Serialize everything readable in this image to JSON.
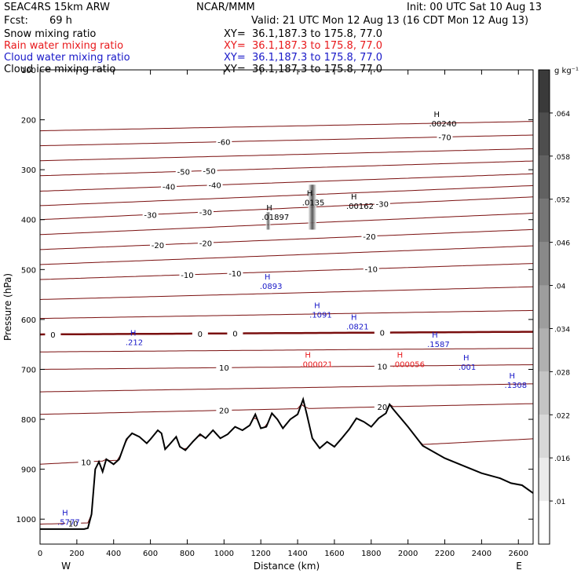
{
  "header": {
    "model": "SEAC4RS 15km ARW",
    "fcst_label": "Fcst:",
    "fcst_value": "69 h",
    "center": "NCAR/MMM",
    "init": "Init: 00 UTC Sat 10 Aug 13",
    "valid": "Valid: 21 UTC Mon 12 Aug 13 (16 CDT Mon 12 Aug 13)"
  },
  "fields": [
    {
      "name": "Snow mixing ratio",
      "color": "#000000",
      "xy": "XY=  36.1,187.3 to 175.8, 77.0"
    },
    {
      "name": "Rain water mixing ratio",
      "color": "#e8191c",
      "xy": "XY=  36.1,187.3 to 175.8, 77.0"
    },
    {
      "name": "Cloud water mixing ratio",
      "color": "#1818c8",
      "xy": "XY=  36.1,187.3 to 175.8, 77.0"
    },
    {
      "name": "Cloud ice mixing ratio",
      "color": "#000000",
      "xy": "XY=  36.1,187.3 to 175.8, 77.0"
    }
  ],
  "chart_data": {
    "type": "contour cross-section",
    "xlabel": "Distance (km)",
    "ylabel": "Pressure (hPa)",
    "xlim": [
      0,
      2680
    ],
    "ylim": [
      1050,
      100
    ],
    "x_ticks": [
      0,
      200,
      400,
      600,
      800,
      1000,
      1200,
      1400,
      1600,
      1800,
      2000,
      2200,
      2400,
      2600
    ],
    "y_ticks": [
      1000,
      900,
      800,
      700,
      600,
      500,
      400,
      300,
      200,
      100
    ],
    "x_end_labels": {
      "left": "W",
      "right": "E"
    },
    "colorbar": {
      "unit": "g kg⁻¹",
      "ticks": [
        ".01",
        ".016",
        ".022",
        ".028",
        ".034",
        ".04",
        ".046",
        ".052",
        ".058",
        ".064"
      ]
    },
    "temperature_contours": {
      "color": "#7a0f0f",
      "levels": [
        {
          "base": 1010,
          "slope": 0.0095,
          "labels": [
            {
              "text": "10",
              "x": 180
            }
          ]
        },
        {
          "base": 890,
          "slope": 0.019,
          "labels": [
            {
              "text": "10",
              "x": 250
            }
          ]
        },
        {
          "base": 790,
          "slope": 0.008,
          "labels": [
            {
              "text": "20",
              "x": 1000
            },
            {
              "text": "20",
              "x": 1860
            }
          ]
        },
        {
          "base": 745,
          "slope": 0.006
        },
        {
          "base": 700,
          "slope": 0.0035,
          "labels": [
            {
              "text": "10",
              "x": 1000
            },
            {
              "text": "10",
              "x": 1860
            }
          ]
        },
        {
          "base": 665,
          "slope": 0.0027
        },
        {
          "base": 630,
          "slope": 0.002,
          "bold": true,
          "labels": [
            {
              "text": "0",
              "x": 70
            },
            {
              "text": "0",
              "x": 870
            },
            {
              "text": "0",
              "x": 1060
            },
            {
              "text": "0",
              "x": 1860
            }
          ]
        },
        {
          "base": 598,
          "slope": 0.006
        },
        {
          "base": 560,
          "slope": 0.0095
        },
        {
          "base": 520,
          "slope": 0.012,
          "labels": [
            {
              "text": "-10",
              "x": 800
            },
            {
              "text": "-10",
              "x": 1060
            },
            {
              "text": "-10",
              "x": 1800
            }
          ]
        },
        {
          "base": 490,
          "slope": 0.014
        },
        {
          "base": 460,
          "slope": 0.015,
          "labels": [
            {
              "text": "-20",
              "x": 640
            },
            {
              "text": "-20",
              "x": 900
            },
            {
              "text": "-20",
              "x": 1790
            }
          ]
        },
        {
          "base": 430,
          "slope": 0.016
        },
        {
          "base": 400,
          "slope": 0.017,
          "labels": [
            {
              "text": "-30",
              "x": 600
            },
            {
              "text": "-30",
              "x": 900
            },
            {
              "text": "-30",
              "x": 1860
            }
          ]
        },
        {
          "base": 372,
          "slope": 0.015
        },
        {
          "base": 343,
          "slope": 0.013,
          "labels": [
            {
              "text": "-40",
              "x": 700
            },
            {
              "text": "-40",
              "x": 950
            }
          ]
        },
        {
          "base": 312,
          "slope": 0.011,
          "labels": [
            {
              "text": "-50",
              "x": 780
            },
            {
              "text": "-50",
              "x": 920
            }
          ]
        },
        {
          "base": 282,
          "slope": 0.009
        },
        {
          "base": 252,
          "slope": 0.008,
          "labels": [
            {
              "text": "-60",
              "x": 1000
            },
            {
              "text": "-70",
              "x": 2200
            }
          ]
        },
        {
          "base": 222,
          "slope": 0.007
        }
      ]
    },
    "terrain": [
      [
        0,
        1020
      ],
      [
        240,
        1020
      ],
      [
        260,
        1018
      ],
      [
        280,
        990
      ],
      [
        300,
        900
      ],
      [
        320,
        885
      ],
      [
        340,
        905
      ],
      [
        360,
        880
      ],
      [
        400,
        890
      ],
      [
        430,
        880
      ],
      [
        450,
        860
      ],
      [
        470,
        840
      ],
      [
        500,
        828
      ],
      [
        540,
        835
      ],
      [
        580,
        848
      ],
      [
        600,
        840
      ],
      [
        640,
        822
      ],
      [
        660,
        828
      ],
      [
        680,
        860
      ],
      [
        700,
        852
      ],
      [
        740,
        835
      ],
      [
        760,
        855
      ],
      [
        790,
        862
      ],
      [
        830,
        845
      ],
      [
        870,
        830
      ],
      [
        900,
        838
      ],
      [
        940,
        822
      ],
      [
        980,
        838
      ],
      [
        1020,
        830
      ],
      [
        1060,
        815
      ],
      [
        1100,
        822
      ],
      [
        1140,
        812
      ],
      [
        1170,
        790
      ],
      [
        1200,
        818
      ],
      [
        1230,
        815
      ],
      [
        1260,
        788
      ],
      [
        1290,
        800
      ],
      [
        1320,
        818
      ],
      [
        1360,
        800
      ],
      [
        1400,
        790
      ],
      [
        1430,
        760
      ],
      [
        1450,
        790
      ],
      [
        1480,
        838
      ],
      [
        1520,
        858
      ],
      [
        1560,
        845
      ],
      [
        1600,
        855
      ],
      [
        1640,
        838
      ],
      [
        1680,
        820
      ],
      [
        1720,
        798
      ],
      [
        1760,
        805
      ],
      [
        1800,
        815
      ],
      [
        1840,
        798
      ],
      [
        1880,
        788
      ],
      [
        1900,
        770
      ],
      [
        1920,
        780
      ],
      [
        2000,
        815
      ],
      [
        2080,
        853
      ],
      [
        2200,
        878
      ],
      [
        2300,
        893
      ],
      [
        2400,
        908
      ],
      [
        2500,
        918
      ],
      [
        2560,
        928
      ],
      [
        2620,
        932
      ],
      [
        2680,
        948
      ]
    ],
    "hydrometeor_maxima": [
      {
        "field": "Cloud water mixing ratio",
        "label": ".212",
        "x": 490,
        "p": 648
      },
      {
        "field": "Cloud water mixing ratio",
        "label": ".5777",
        "x": 120,
        "p": 1008
      },
      {
        "field": "Cloud ice mixing ratio",
        "label": ".01897",
        "x": 1230,
        "p": 397
      },
      {
        "field": "Cloud ice mixing ratio",
        "label": ".0135",
        "x": 1450,
        "p": 368
      },
      {
        "field": "Cloud ice mixing ratio",
        "label": ".00162",
        "x": 1690,
        "p": 375
      },
      {
        "field": "Cloud ice mixing ratio",
        "label": ".00240",
        "x": 2140,
        "p": 210
      },
      {
        "field": "Cloud water mixing ratio",
        "label": ".0893",
        "x": 1220,
        "p": 536
      },
      {
        "field": "Cloud water mixing ratio",
        "label": ".1091",
        "x": 1490,
        "p": 593
      },
      {
        "field": "Cloud water mixing ratio",
        "label": ".0821",
        "x": 1690,
        "p": 617
      },
      {
        "field": "Cloud water mixing ratio",
        "label": ".1587",
        "x": 2130,
        "p": 652
      },
      {
        "field": "Cloud water mixing ratio",
        "label": ".001",
        "x": 2300,
        "p": 698
      },
      {
        "field": "Cloud water mixing ratio",
        "label": ".1308",
        "x": 2550,
        "p": 734
      },
      {
        "field": "Rain water mixing ratio",
        "label": ".000021",
        "x": 1440,
        "p": 692
      },
      {
        "field": "Rain water mixing ratio",
        "label": ".000056",
        "x": 1940,
        "p": 692
      }
    ],
    "ice_shading": [
      {
        "x": 1240,
        "p_top": 385,
        "p_bot": 420,
        "width_km": 25,
        "value": 0.04
      },
      {
        "x": 1480,
        "p_top": 330,
        "p_bot": 420,
        "width_km": 45,
        "value": 0.058
      }
    ]
  }
}
